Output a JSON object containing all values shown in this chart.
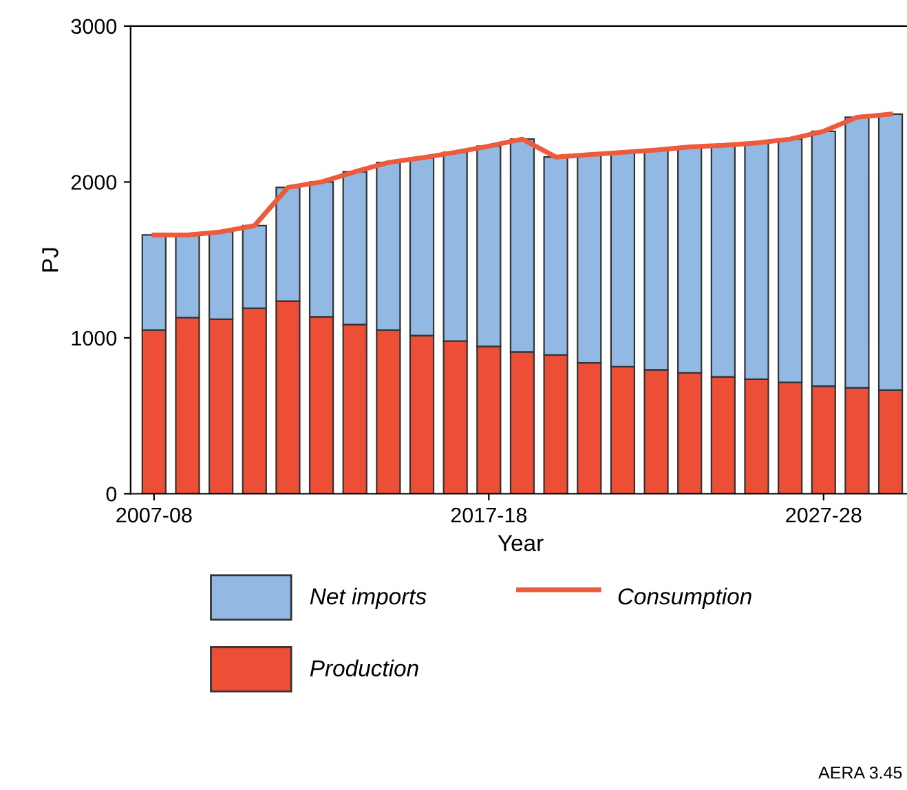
{
  "chart_data": {
    "type": "bar",
    "stacked": true,
    "xlabel": "Year",
    "ylabel": "PJ",
    "categories": [
      "2007-08",
      null,
      null,
      null,
      null,
      null,
      null,
      null,
      null,
      null,
      "2017-18",
      null,
      null,
      null,
      null,
      null,
      null,
      null,
      null,
      null,
      "2027-28",
      null,
      null
    ],
    "series": [
      {
        "name": "Production",
        "color": "#ec4e36",
        "values": [
          1050,
          1130,
          1120,
          1190,
          1235,
          1135,
          1085,
          1050,
          1015,
          980,
          945,
          910,
          890,
          840,
          815,
          795,
          775,
          750,
          735,
          715,
          690,
          680,
          665
        ]
      },
      {
        "name": "Net imports",
        "color": "#92b9e3",
        "values": [
          610,
          530,
          560,
          530,
          730,
          865,
          980,
          1075,
          1140,
          1210,
          1285,
          1365,
          1270,
          1335,
          1375,
          1410,
          1450,
          1485,
          1515,
          1560,
          1635,
          1735,
          1770
        ]
      },
      {
        "name": "Consumption",
        "type": "line",
        "color": "#ee5a3c",
        "values": [
          1660,
          1660,
          1680,
          1720,
          1965,
          2000,
          2065,
          2125,
          2155,
          2190,
          2230,
          2275,
          2160,
          2175,
          2190,
          2205,
          2225,
          2235,
          2250,
          2275,
          2325,
          2415,
          2435
        ]
      }
    ],
    "ylim": [
      0,
      3000
    ],
    "yticks": [
      0,
      1000,
      2000,
      3000
    ],
    "grid": false,
    "legend": "bottom",
    "marker": "none",
    "line_style": "solid",
    "annotations": [
      "AERA 3.45"
    ]
  }
}
